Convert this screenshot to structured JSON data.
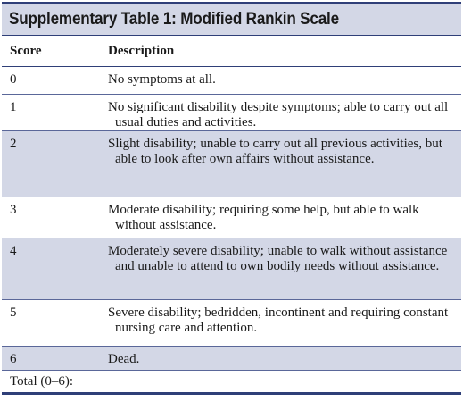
{
  "title": "Supplementary Table 1: Modified Rankin Scale",
  "table": {
    "headers": [
      "Score",
      "Description"
    ],
    "rows": [
      {
        "score": "0",
        "description": "No symptoms at all."
      },
      {
        "score": "1",
        "description": "No significant disability despite symptoms; able to carry out all usual duties and activities."
      },
      {
        "score": "2",
        "description": "Slight disability; unable to carry out all previous activities, but able to look after own affairs without assistance."
      },
      {
        "score": "3",
        "description": "Moderate disability; requiring some help, but able to walk without assistance."
      },
      {
        "score": "4",
        "description": "Moderately severe disability; unable to walk without assistance and unable to attend to own bodily needs without assistance."
      },
      {
        "score": "5",
        "description": "Severe disability; bedridden, incontinent and requiring constant nursing care and attention."
      },
      {
        "score": "6",
        "description": "Dead."
      }
    ],
    "footer": "Total (0–6):"
  },
  "colors": {
    "accent": "#2f3f78",
    "row_shade": "#d3d7e6"
  }
}
